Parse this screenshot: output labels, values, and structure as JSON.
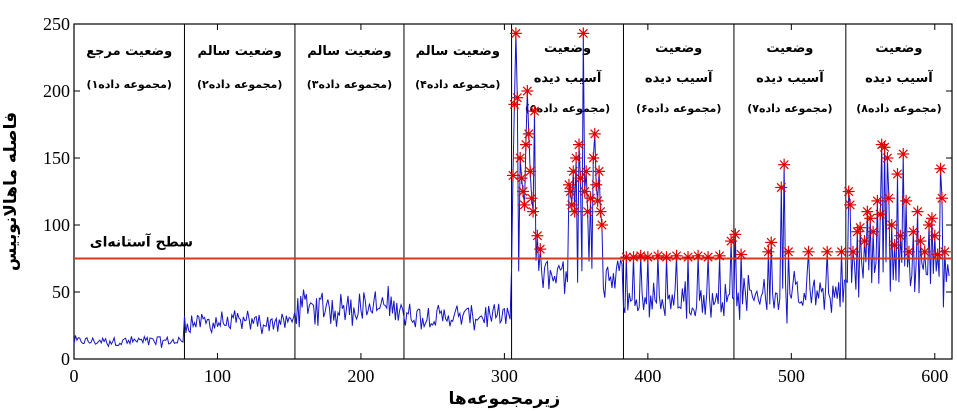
{
  "chart_data": {
    "type": "line",
    "title": "",
    "xlabel": "زیرمجموعه‌ها",
    "ylabel": "فاصله ماهالانوبیس",
    "xlim": [
      0,
      612
    ],
    "ylim": [
      0,
      250
    ],
    "xticks": [
      0,
      100,
      200,
      300,
      400,
      500,
      600
    ],
    "yticks": [
      0,
      50,
      100,
      150,
      200,
      250
    ],
    "grid": false,
    "line_color": "#1414c8",
    "marker_color": "#e00000",
    "threshold": {
      "value": 75,
      "label": "سطح آستانه‌ای",
      "color": "#d23c1e"
    },
    "separators": [
      77,
      154,
      230,
      305,
      383,
      460,
      538
    ],
    "segments": [
      {
        "x_start": 0,
        "x_end": 77,
        "lines": [
          "وضعیت مرجع",
          "(مجموعه داده۱)"
        ]
      },
      {
        "x_start": 77,
        "x_end": 154,
        "lines": [
          "وضعیت سالم",
          "(مجموعه داده۲)"
        ]
      },
      {
        "x_start": 154,
        "x_end": 230,
        "lines": [
          "وضعیت سالم",
          "(مجموعه داده۳)"
        ]
      },
      {
        "x_start": 230,
        "x_end": 305,
        "lines": [
          "وضعیت سالم",
          "(مجموعه داده۴)"
        ]
      },
      {
        "x_start": 305,
        "x_end": 383,
        "lines": [
          "وضعیت",
          "آسیب دیده",
          "(مجموعه داده۵)"
        ]
      },
      {
        "x_start": 383,
        "x_end": 460,
        "lines": [
          "وضعیت",
          "آسیب دیده",
          "(مجموعه داده۶)"
        ]
      },
      {
        "x_start": 460,
        "x_end": 538,
        "lines": [
          "وضعیت",
          "آسیب دیده",
          "(مجموعه داده۷)"
        ]
      },
      {
        "x_start": 538,
        "x_end": 612,
        "lines": [
          "وضعیت",
          "آسیب دیده",
          "(مجموعه داده۸)"
        ]
      }
    ],
    "series": [
      {
        "segments_profile": [
          {
            "x_start": 0,
            "x_end": 77,
            "base": 14,
            "amp": 6
          },
          {
            "x_start": 77,
            "x_end": 154,
            "base": 28,
            "amp": 14
          },
          {
            "x_start": 154,
            "x_end": 230,
            "base": 35,
            "amp": 32
          },
          {
            "x_start": 230,
            "x_end": 305,
            "base": 32,
            "amp": 18
          },
          {
            "x_start": 305,
            "x_end": 383,
            "base": 50,
            "amp": 70
          },
          {
            "x_start": 383,
            "x_end": 460,
            "base": 40,
            "amp": 35
          },
          {
            "x_start": 460,
            "x_end": 538,
            "base": 42,
            "amp": 40
          },
          {
            "x_start": 538,
            "x_end": 612,
            "base": 55,
            "amp": 55
          }
        ]
      }
    ],
    "exceedances": [
      [
        306,
        137
      ],
      [
        307,
        190
      ],
      [
        308,
        243
      ],
      [
        309,
        195
      ],
      [
        311,
        150
      ],
      [
        312,
        135
      ],
      [
        313,
        125
      ],
      [
        314,
        115
      ],
      [
        315,
        160
      ],
      [
        316,
        200
      ],
      [
        317,
        168
      ],
      [
        318,
        140
      ],
      [
        319,
        120
      ],
      [
        320,
        110
      ],
      [
        321,
        185
      ],
      [
        323,
        92
      ],
      [
        325,
        82
      ],
      [
        345,
        130
      ],
      [
        346,
        125
      ],
      [
        347,
        115
      ],
      [
        348,
        140
      ],
      [
        349,
        110
      ],
      [
        350,
        150
      ],
      [
        352,
        160
      ],
      [
        353,
        135
      ],
      [
        355,
        243
      ],
      [
        356,
        125
      ],
      [
        357,
        140
      ],
      [
        358,
        110
      ],
      [
        360,
        120
      ],
      [
        362,
        150
      ],
      [
        363,
        168
      ],
      [
        364,
        130
      ],
      [
        365,
        118
      ],
      [
        366,
        140
      ],
      [
        367,
        110
      ],
      [
        368,
        100
      ],
      [
        385,
        76
      ],
      [
        390,
        76
      ],
      [
        395,
        77
      ],
      [
        400,
        76
      ],
      [
        407,
        77
      ],
      [
        413,
        76
      ],
      [
        420,
        77
      ],
      [
        428,
        76
      ],
      [
        435,
        77
      ],
      [
        442,
        76
      ],
      [
        450,
        77
      ],
      [
        458,
        88
      ],
      [
        461,
        93
      ],
      [
        465,
        78
      ],
      [
        484,
        80
      ],
      [
        486,
        87
      ],
      [
        493,
        128
      ],
      [
        495,
        145
      ],
      [
        498,
        80
      ],
      [
        512,
        80
      ],
      [
        525,
        80
      ],
      [
        535,
        80
      ],
      [
        540,
        125
      ],
      [
        541,
        115
      ],
      [
        543,
        80
      ],
      [
        546,
        95
      ],
      [
        548,
        98
      ],
      [
        551,
        88
      ],
      [
        553,
        110
      ],
      [
        555,
        105
      ],
      [
        557,
        95
      ],
      [
        560,
        118
      ],
      [
        562,
        108
      ],
      [
        563,
        160
      ],
      [
        565,
        158
      ],
      [
        567,
        150
      ],
      [
        568,
        120
      ],
      [
        570,
        100
      ],
      [
        572,
        85
      ],
      [
        574,
        138
      ],
      [
        576,
        92
      ],
      [
        578,
        153
      ],
      [
        580,
        118
      ],
      [
        582,
        80
      ],
      [
        585,
        95
      ],
      [
        588,
        110
      ],
      [
        590,
        88
      ],
      [
        593,
        80
      ],
      [
        596,
        100
      ],
      [
        598,
        105
      ],
      [
        600,
        92
      ],
      [
        602,
        78
      ],
      [
        604,
        142
      ],
      [
        605,
        120
      ],
      [
        607,
        80
      ]
    ]
  }
}
